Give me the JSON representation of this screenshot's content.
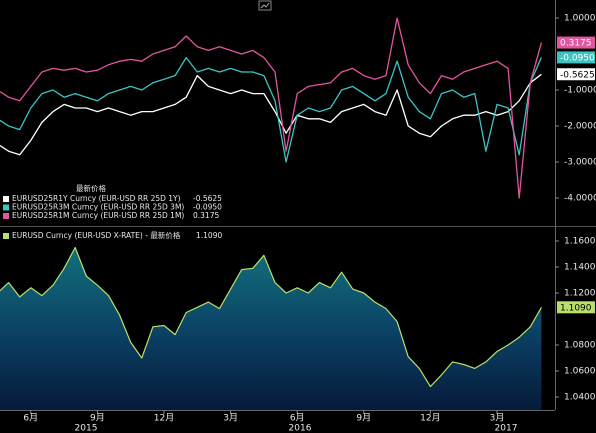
{
  "chart_data": [
    {
      "type": "line",
      "legend_header": "最新价格",
      "ylim": [
        -4.75,
        1.5
      ],
      "yticks": [
        {
          "value": 1,
          "label": "1.0000"
        },
        {
          "value": -1,
          "label": "-1.0000"
        },
        {
          "value": -2,
          "label": "-2.0000"
        },
        {
          "value": -3,
          "label": "-3.0000"
        },
        {
          "value": -4,
          "label": "-4.0000"
        }
      ],
      "series": [
        {
          "name": "EURUSD25R1Y Curncy (EUR-USD RR 25D 1Y)",
          "color": "#ffffff",
          "last": {
            "value": -0.5625,
            "label": "-0.5625"
          },
          "values": [
            -2.5,
            -2.7,
            -2.8,
            -2.4,
            -1.9,
            -1.6,
            -1.4,
            -1.5,
            -1.5,
            -1.6,
            -1.5,
            -1.6,
            -1.7,
            -1.6,
            -1.6,
            -1.5,
            -1.4,
            -1.2,
            -0.6,
            -0.9,
            -1.0,
            -1.1,
            -1.0,
            -1.1,
            -1.1,
            -1.6,
            -2.2,
            -1.7,
            -1.8,
            -1.8,
            -1.9,
            -1.6,
            -1.5,
            -1.4,
            -1.6,
            -1.7,
            -1.0,
            -2.0,
            -2.2,
            -2.3,
            -2.0,
            -1.8,
            -1.7,
            -1.7,
            -1.6,
            -1.7,
            -1.6,
            -1.3,
            -0.8,
            -0.5625
          ]
        },
        {
          "name": "EURUSD25R3M Curncy (EUR-USD RR 25D 3M)",
          "color": "#3cc4c4",
          "last": {
            "value": -0.095,
            "label": "-0.0950"
          },
          "values": [
            -1.8,
            -2.0,
            -2.1,
            -1.5,
            -1.1,
            -1.0,
            -1.2,
            -1.1,
            -1.2,
            -1.3,
            -1.1,
            -1.0,
            -0.9,
            -1.0,
            -0.8,
            -0.7,
            -0.6,
            -0.1,
            -0.5,
            -0.4,
            -0.5,
            -0.4,
            -0.5,
            -0.5,
            -0.6,
            -1.3,
            -3.0,
            -1.7,
            -1.5,
            -1.6,
            -1.5,
            -1.0,
            -0.9,
            -1.1,
            -1.3,
            -1.1,
            -0.2,
            -1.2,
            -1.6,
            -1.8,
            -1.1,
            -1.0,
            -1.2,
            -1.1,
            -2.7,
            -1.4,
            -1.5,
            -2.8,
            -0.8,
            -0.095
          ]
        },
        {
          "name": "EURUSD25R1M Curncy (EUR-USD RR 25D 1M)",
          "color": "#e2559f",
          "last": {
            "value": 0.3175,
            "label": "0.3175"
          },
          "values": [
            -1.0,
            -1.2,
            -1.3,
            -0.9,
            -0.5,
            -0.4,
            -0.45,
            -0.4,
            -0.5,
            -0.45,
            -0.3,
            -0.2,
            -0.15,
            -0.2,
            0.0,
            0.1,
            0.2,
            0.5,
            0.2,
            0.1,
            0.2,
            0.1,
            0.0,
            0.1,
            -0.1,
            -0.5,
            -2.7,
            -1.1,
            -0.9,
            -0.85,
            -0.8,
            -0.5,
            -0.4,
            -0.6,
            -0.7,
            -0.6,
            1.0,
            -0.3,
            -0.8,
            -1.1,
            -0.6,
            -0.7,
            -0.5,
            -0.4,
            -0.3,
            -0.2,
            -0.4,
            -4.0,
            -0.8,
            0.3175
          ]
        }
      ]
    },
    {
      "type": "area",
      "name": "EURUSD Curncy (EUR-USD X-RATE) - 最新价格",
      "color": "#b8e06a",
      "last": {
        "value": 1.109,
        "label": "1.1090"
      },
      "ylim": [
        1.03,
        1.17
      ],
      "yticks": [
        {
          "value": 1.16,
          "label": "1.1600"
        },
        {
          "value": 1.14,
          "label": "1.1400"
        },
        {
          "value": 1.12,
          "label": "1.1200"
        },
        {
          "value": 1.08,
          "label": "1.0800"
        },
        {
          "value": 1.06,
          "label": "1.0600"
        },
        {
          "value": 1.04,
          "label": "1.0400"
        }
      ],
      "categories": [
        null,
        null,
        null,
        "6月",
        null,
        null,
        null,
        null,
        null,
        "9月",
        null,
        null,
        null,
        null,
        null,
        "12月",
        null,
        null,
        null,
        null,
        null,
        "3月",
        null,
        null,
        null,
        null,
        null,
        "6月",
        null,
        null,
        null,
        null,
        null,
        "9月",
        null,
        null,
        null,
        null,
        null,
        "12月",
        null,
        null,
        null,
        null,
        null,
        "3月",
        null,
        null,
        null,
        null
      ],
      "x_years": [
        "2015",
        "2016",
        "2017"
      ],
      "values": [
        1.12,
        1.128,
        1.117,
        1.124,
        1.118,
        1.126,
        1.139,
        1.155,
        1.133,
        1.126,
        1.118,
        1.103,
        1.082,
        1.07,
        1.094,
        1.095,
        1.088,
        1.105,
        1.109,
        1.113,
        1.108,
        1.123,
        1.138,
        1.139,
        1.149,
        1.128,
        1.12,
        1.124,
        1.12,
        1.128,
        1.124,
        1.136,
        1.123,
        1.12,
        1.113,
        1.108,
        1.098,
        1.071,
        1.062,
        1.048,
        1.057,
        1.067,
        1.065,
        1.062,
        1.067,
        1.075,
        1.08,
        1.086,
        1.094,
        1.109
      ]
    }
  ]
}
